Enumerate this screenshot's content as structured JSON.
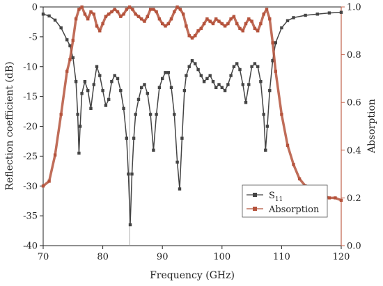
{
  "chart_data": {
    "type": "line",
    "xlabel": "Frequency (GHz)",
    "ylabel_left": "Reflection coefficient (dB)",
    "ylabel_right": "Absorption",
    "xlim": [
      70,
      120
    ],
    "ylim_left": [
      -40,
      0
    ],
    "ylim_right": [
      0.0,
      1.0
    ],
    "x_ticks": [
      "70",
      "80",
      "90",
      "100",
      "110",
      "120"
    ],
    "y_left_ticks": [
      "0",
      "-5",
      "-10",
      "-15",
      "-20",
      "-25",
      "-30",
      "-35",
      "-40"
    ],
    "y_right_ticks": [
      "1.0",
      "0.8",
      "0.6",
      "0.4",
      "0.2",
      "0.0"
    ],
    "x_tick_values": [
      70,
      80,
      90,
      100,
      110,
      120
    ],
    "y_left_tick_values": [
      0,
      -5,
      -10,
      -15,
      -20,
      -25,
      -30,
      -35,
      -40
    ],
    "y_right_tick_values": [
      1.0,
      0.8,
      0.6,
      0.4,
      0.2,
      0.0
    ],
    "reference_line_x": 84.5,
    "grid": false,
    "legend_position": "bottom-right",
    "legend": {
      "s11_main": "S",
      "s11_sub": "11",
      "absorption": "Absorption"
    },
    "series": [
      {
        "name": "S11",
        "axis": "left",
        "color": "#444444",
        "x": [
          70,
          71,
          72,
          73,
          74,
          74.5,
          75,
          75.5,
          75.8,
          76.0,
          76.2,
          76.5,
          77.0,
          77.5,
          78.0,
          78.5,
          79.0,
          79.5,
          80.0,
          80.5,
          81.0,
          81.5,
          82.0,
          82.5,
          83.0,
          83.5,
          84.0,
          84.3,
          84.6,
          84.9,
          85.2,
          85.5,
          86.0,
          86.5,
          87.0,
          87.5,
          88.0,
          88.5,
          89.0,
          89.5,
          90.0,
          90.5,
          91.0,
          91.5,
          92.0,
          92.5,
          92.9,
          93.3,
          93.7,
          94.0,
          94.5,
          95.0,
          95.5,
          96.0,
          96.5,
          97.0,
          97.5,
          98.0,
          98.5,
          99.0,
          99.5,
          100.0,
          100.5,
          101.0,
          101.5,
          102.0,
          102.5,
          103.0,
          103.5,
          104.0,
          104.5,
          105.0,
          105.5,
          106.0,
          106.5,
          107.0,
          107.3,
          107.6,
          108.0,
          108.5,
          109.0,
          110.0,
          111.0,
          112.0,
          114.0,
          116.0,
          118.0,
          120.0
        ],
        "values": [
          -1.2,
          -1.5,
          -2.2,
          -3.5,
          -5.5,
          -6.5,
          -8.5,
          -12.5,
          -18.0,
          -24.5,
          -20.0,
          -14.5,
          -12.5,
          -14.0,
          -17.0,
          -13.0,
          -10.0,
          -11.5,
          -14.0,
          -16.5,
          -15.5,
          -12.5,
          -11.5,
          -12.0,
          -14.0,
          -17.0,
          -22.0,
          -28.0,
          -36.5,
          -28.0,
          -22.0,
          -18.0,
          -15.5,
          -13.5,
          -13.0,
          -14.5,
          -18.0,
          -24.0,
          -18.0,
          -13.5,
          -12.0,
          -11.0,
          -11.0,
          -13.5,
          -18.0,
          -26.0,
          -30.5,
          -22.0,
          -14.0,
          -11.5,
          -10.0,
          -9.0,
          -9.5,
          -10.5,
          -11.5,
          -12.5,
          -12.0,
          -11.5,
          -12.5,
          -13.5,
          -13.0,
          -13.5,
          -14.0,
          -13.0,
          -11.5,
          -10.0,
          -9.5,
          -10.5,
          -13.0,
          -16.0,
          -13.0,
          -10.0,
          -9.5,
          -10.0,
          -12.5,
          -18.0,
          -24.0,
          -20.0,
          -14.0,
          -9.0,
          -6.0,
          -3.5,
          -2.3,
          -1.8,
          -1.4,
          -1.2,
          -1.0,
          -0.9
        ]
      },
      {
        "name": "Absorption",
        "axis": "right",
        "color": "#b5533c",
        "x": [
          70,
          71,
          72,
          73,
          74,
          74.5,
          75,
          75.5,
          76,
          76.5,
          77,
          77.5,
          78,
          78.5,
          79,
          79.5,
          80,
          80.5,
          81,
          81.5,
          82,
          82.5,
          83,
          83.5,
          84,
          84.5,
          85,
          85.5,
          86,
          86.5,
          87,
          87.5,
          88,
          88.5,
          89,
          89.5,
          90,
          90.5,
          91,
          91.5,
          92,
          92.5,
          93,
          93.5,
          94,
          94.5,
          95,
          95.5,
          96,
          96.5,
          97,
          97.5,
          98,
          98.5,
          99,
          99.5,
          100,
          100.5,
          101,
          101.5,
          102,
          102.5,
          103,
          103.5,
          104,
          104.5,
          105,
          105.5,
          106,
          106.5,
          107,
          107.5,
          108,
          108.5,
          109,
          110,
          111,
          112,
          113,
          114,
          115,
          116,
          117,
          118,
          119,
          120
        ],
        "values": [
          0.25,
          0.27,
          0.38,
          0.55,
          0.73,
          0.78,
          0.86,
          0.95,
          0.99,
          1.0,
          0.97,
          0.95,
          0.98,
          0.97,
          0.92,
          0.9,
          0.93,
          0.96,
          0.97,
          0.98,
          0.99,
          0.98,
          0.96,
          0.97,
          0.99,
          1.0,
          0.99,
          0.97,
          0.96,
          0.95,
          0.94,
          0.96,
          0.99,
          0.99,
          0.98,
          0.95,
          0.93,
          0.92,
          0.93,
          0.95,
          0.98,
          1.0,
          0.99,
          0.97,
          0.92,
          0.88,
          0.87,
          0.88,
          0.9,
          0.91,
          0.93,
          0.95,
          0.94,
          0.93,
          0.95,
          0.94,
          0.93,
          0.92,
          0.93,
          0.95,
          0.96,
          0.93,
          0.91,
          0.9,
          0.93,
          0.95,
          0.94,
          0.91,
          0.9,
          0.93,
          0.97,
          0.99,
          0.95,
          0.85,
          0.73,
          0.55,
          0.42,
          0.34,
          0.28,
          0.25,
          0.23,
          0.22,
          0.21,
          0.2,
          0.2,
          0.19
        ]
      }
    ]
  },
  "colors": {
    "s11": "#444444",
    "absorption": "#b5533c",
    "right_axis": "#c0604a",
    "reference_line": "#999999"
  }
}
